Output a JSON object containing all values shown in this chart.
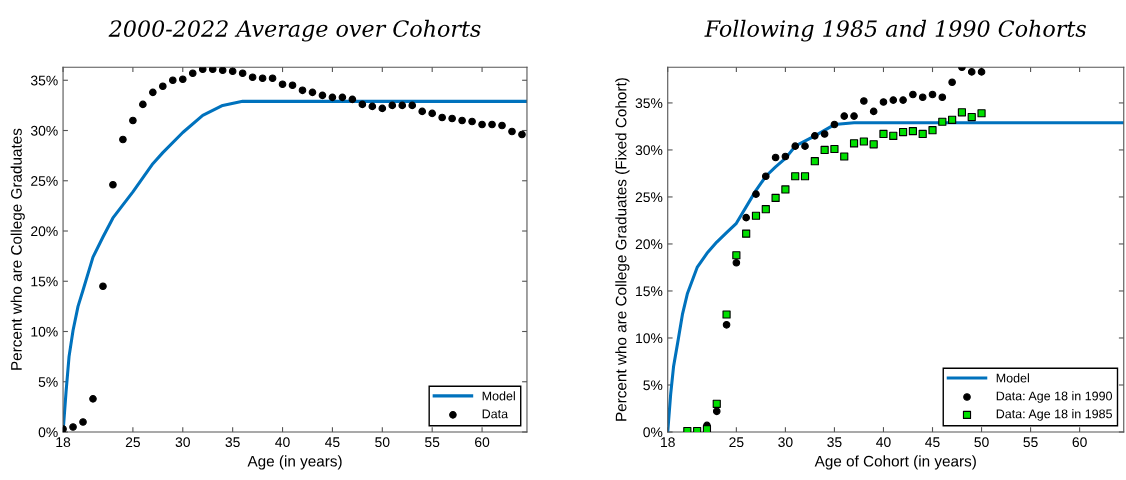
{
  "chart_data": [
    {
      "type": "scatter",
      "title": "2000-2022 Average over Cohorts",
      "xlabel": "Age (in years)",
      "ylabel": "Percent who are College Graduates",
      "xlim": [
        18,
        64.5
      ],
      "ylim": [
        0,
        36.3
      ],
      "xticks": [
        18,
        25,
        30,
        35,
        40,
        45,
        50,
        55,
        60
      ],
      "yticks": [
        {
          "value": 0,
          "label": "0%"
        },
        {
          "value": 5,
          "label": "5%"
        },
        {
          "value": 10,
          "label": "10%"
        },
        {
          "value": 15,
          "label": "15%"
        },
        {
          "value": 20,
          "label": "20%"
        },
        {
          "value": 25,
          "label": "25%"
        },
        {
          "value": 30,
          "label": "30%"
        },
        {
          "value": 35,
          "label": "35%"
        }
      ],
      "grid": false,
      "legend": "bottom right",
      "series": [
        {
          "name": "Model",
          "type": "line",
          "color": "#0072bd",
          "marker": "none",
          "line_style": "solid",
          "x": [
            18,
            18.3,
            18.6,
            19,
            19.5,
            20,
            21,
            22,
            23,
            25,
            27,
            28,
            30,
            32,
            34,
            36,
            38,
            64.5
          ],
          "values": [
            0,
            4,
            7.5,
            10.1,
            12.5,
            14.1,
            17.4,
            19.4,
            21.3,
            23.9,
            26.7,
            27.8,
            29.8,
            31.5,
            32.5,
            32.9,
            32.9,
            32.9
          ]
        },
        {
          "name": "Data",
          "color": "#000000",
          "marker": "circle",
          "x": [
            18,
            19,
            20,
            21,
            22,
            23,
            24,
            25,
            26,
            27,
            28,
            29,
            30,
            31,
            32,
            33,
            34,
            35,
            36,
            37,
            38,
            39,
            40,
            41,
            42,
            43,
            44,
            45,
            46,
            47,
            48,
            49,
            50,
            51,
            52,
            53,
            54,
            55,
            56,
            57,
            58,
            59,
            60,
            61,
            62,
            63,
            64
          ],
          "values": [
            0.3,
            0.5,
            1.0,
            3.3,
            14.5,
            24.6,
            29.1,
            31.0,
            32.6,
            33.8,
            34.4,
            35.0,
            35.1,
            35.7,
            36.1,
            36.1,
            36.0,
            35.9,
            35.7,
            35.3,
            35.2,
            35.2,
            34.6,
            34.5,
            34.0,
            33.8,
            33.5,
            33.3,
            33.3,
            33.1,
            32.6,
            32.4,
            32.2,
            32.5,
            32.5,
            32.5,
            31.9,
            31.7,
            31.3,
            31.2,
            31.0,
            30.9,
            30.6,
            30.6,
            30.5,
            29.9,
            29.6
          ]
        }
      ]
    },
    {
      "type": "scatter",
      "title": "Following 1985 and 1990 Cohorts",
      "xlabel": "Age of Cohort (in years)",
      "ylabel": "Percent who are College Graduates (Fixed Cohort)",
      "xlim": [
        18,
        64.5
      ],
      "ylim": [
        0,
        38.8
      ],
      "xticks": [
        18,
        25,
        30,
        35,
        40,
        45,
        50,
        55,
        60
      ],
      "yticks": [
        {
          "value": 0,
          "label": "0%"
        },
        {
          "value": 5,
          "label": "5%"
        },
        {
          "value": 10,
          "label": "10%"
        },
        {
          "value": 15,
          "label": "15%"
        },
        {
          "value": 20,
          "label": "20%"
        },
        {
          "value": 25,
          "label": "25%"
        },
        {
          "value": 30,
          "label": "30%"
        },
        {
          "value": 35,
          "label": "35%"
        }
      ],
      "grid": false,
      "legend": "bottom right",
      "series": [
        {
          "name": "Model",
          "type": "line",
          "color": "#0072bd",
          "marker": "none",
          "line_style": "solid",
          "x": [
            18,
            18.3,
            18.6,
            19,
            19.5,
            20,
            21,
            22,
            23,
            24,
            25,
            27,
            28,
            29,
            30,
            31,
            33,
            35,
            37,
            64.5
          ],
          "values": [
            0,
            4,
            7,
            9.4,
            12.5,
            14.7,
            17.5,
            19.0,
            20.2,
            21.2,
            22.2,
            25.7,
            27.2,
            28.2,
            29.1,
            30.4,
            31.5,
            32.7,
            32.9,
            32.9
          ]
        },
        {
          "name": "Data: Age 18 in 1990",
          "color": "#000000",
          "marker": "circle",
          "x": [
            22,
            23,
            24,
            25,
            26,
            27,
            28,
            29,
            30,
            31,
            32,
            33,
            34,
            35,
            36,
            37,
            38,
            39,
            40,
            41,
            42,
            43,
            44,
            45,
            46,
            47,
            48,
            49,
            50
          ],
          "values": [
            0.7,
            2.2,
            11.4,
            18.0,
            22.8,
            25.3,
            27.2,
            29.2,
            29.3,
            30.4,
            30.4,
            31.5,
            31.7,
            32.7,
            33.6,
            33.6,
            35.2,
            34.1,
            35.1,
            35.3,
            35.3,
            35.9,
            35.6,
            35.9,
            35.6,
            37.2,
            38.8,
            38.3,
            38.3
          ]
        },
        {
          "name": "Data: Age 18 in 1985",
          "color": "#00e000",
          "marker": "square",
          "x": [
            20,
            21,
            22,
            23,
            24,
            25,
            26,
            27,
            28,
            29,
            30,
            31,
            32,
            33,
            34,
            35,
            36,
            37,
            38,
            39,
            40,
            41,
            42,
            43,
            44,
            45,
            46,
            47,
            48,
            49,
            50
          ],
          "values": [
            0.1,
            0.1,
            0.3,
            3.0,
            12.5,
            18.8,
            21.1,
            23.0,
            23.7,
            24.9,
            25.8,
            27.2,
            27.2,
            28.8,
            30.0,
            30.1,
            29.3,
            30.7,
            30.9,
            30.6,
            31.7,
            31.5,
            31.9,
            32.0,
            31.7,
            32.1,
            33.0,
            33.2,
            34.0,
            33.5,
            33.9
          ]
        }
      ]
    }
  ]
}
